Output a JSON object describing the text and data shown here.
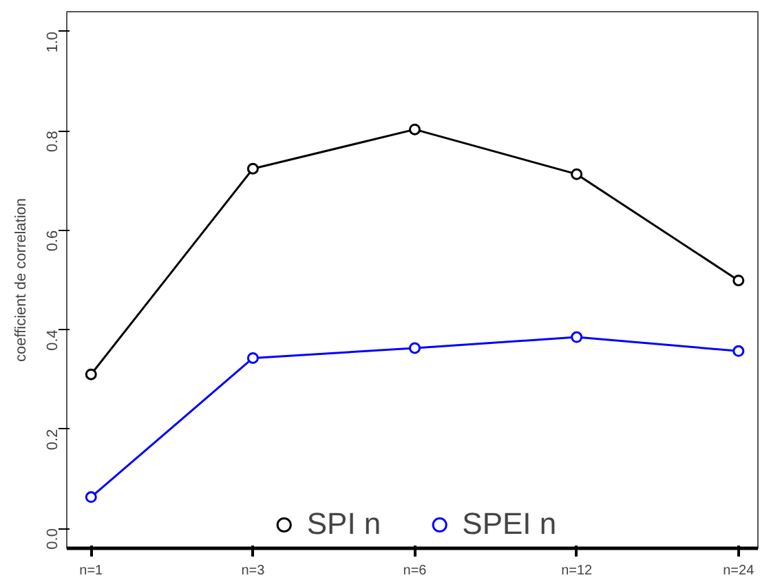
{
  "chart_data": {
    "type": "line",
    "ylabel": "coefficient de correlation",
    "categories": [
      "n=1",
      "n=3",
      "n=6",
      "n=12",
      "n=24"
    ],
    "series": [
      {
        "name": "SPI n",
        "color": "#000000",
        "values": [
          0.31,
          0.724,
          0.803,
          0.713,
          0.499
        ]
      },
      {
        "name": "SPEI n",
        "color": "#0000ff",
        "values": [
          0.063,
          0.343,
          0.363,
          0.385,
          0.357
        ]
      }
    ],
    "ylim": [
      -0.04,
      1.04
    ],
    "yticks": [
      {
        "value": 0,
        "label": "0.0"
      },
      0.2,
      0.4,
      0.6,
      0.8,
      {
        "value": 1,
        "label": "1.0"
      }
    ],
    "grid": false,
    "legend": "bottom",
    "marker": "circle",
    "line_style": "solid"
  }
}
